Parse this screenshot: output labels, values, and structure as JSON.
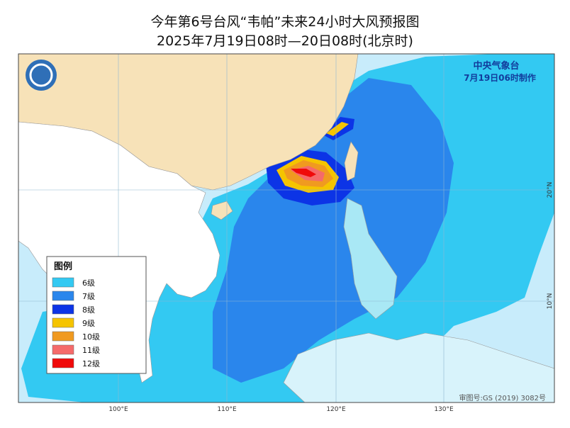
{
  "header": {
    "title": "今年第6号台风“韦帕”未来24小时大风预报图",
    "subtitle": "2025年7月19日08时—20日08时(北京时)"
  },
  "agency": "中央气象台",
  "issued": "7月19日06时制作",
  "legend": {
    "title": "图例",
    "items": [
      {
        "label": "6级",
        "color": "#33c9f2"
      },
      {
        "label": "7级",
        "color": "#2a86ec"
      },
      {
        "label": "8级",
        "color": "#0c34e6"
      },
      {
        "label": "9级",
        "color": "#f5c400"
      },
      {
        "label": "10级",
        "color": "#f09a20"
      },
      {
        "label": "11级",
        "color": "#f56a6a"
      },
      {
        "label": "12级",
        "color": "#f00a0a"
      }
    ]
  },
  "axes": {
    "longitude": [
      "100°E",
      "110°E",
      "120°E",
      "130°E"
    ],
    "latitude": [
      "20°N",
      "10°N"
    ]
  },
  "footer": "审图号:GS (2019) 3082号"
}
